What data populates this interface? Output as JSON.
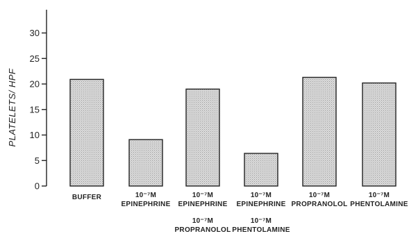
{
  "chart_data": {
    "type": "bar",
    "ylabel": "PLATELETS/ HPF",
    "ylim": [
      0,
      35
    ],
    "yticks": [
      0,
      5,
      10,
      15,
      20,
      25,
      30
    ],
    "grid": false,
    "categories": [
      [
        "BUFFER"
      ],
      [
        "10⁻⁷M",
        "EPINEPHRINE"
      ],
      [
        "10⁻⁷M",
        "EPINEPHRINE",
        "10⁻⁷M",
        "PROPRANOLOL"
      ],
      [
        "10⁻⁷M",
        "EPINEPHRINE",
        "10⁻⁷M",
        "PHENTOLAMINE"
      ],
      [
        "10⁻⁷M",
        "PROPRANOLOL"
      ],
      [
        "10⁻⁷M",
        "PHENTOLAMINE"
      ]
    ],
    "values": [
      20.9,
      9.1,
      19.0,
      6.4,
      21.3,
      20.2
    ],
    "bar_fill": "#d6d6d6",
    "ink_color": "#222222"
  }
}
